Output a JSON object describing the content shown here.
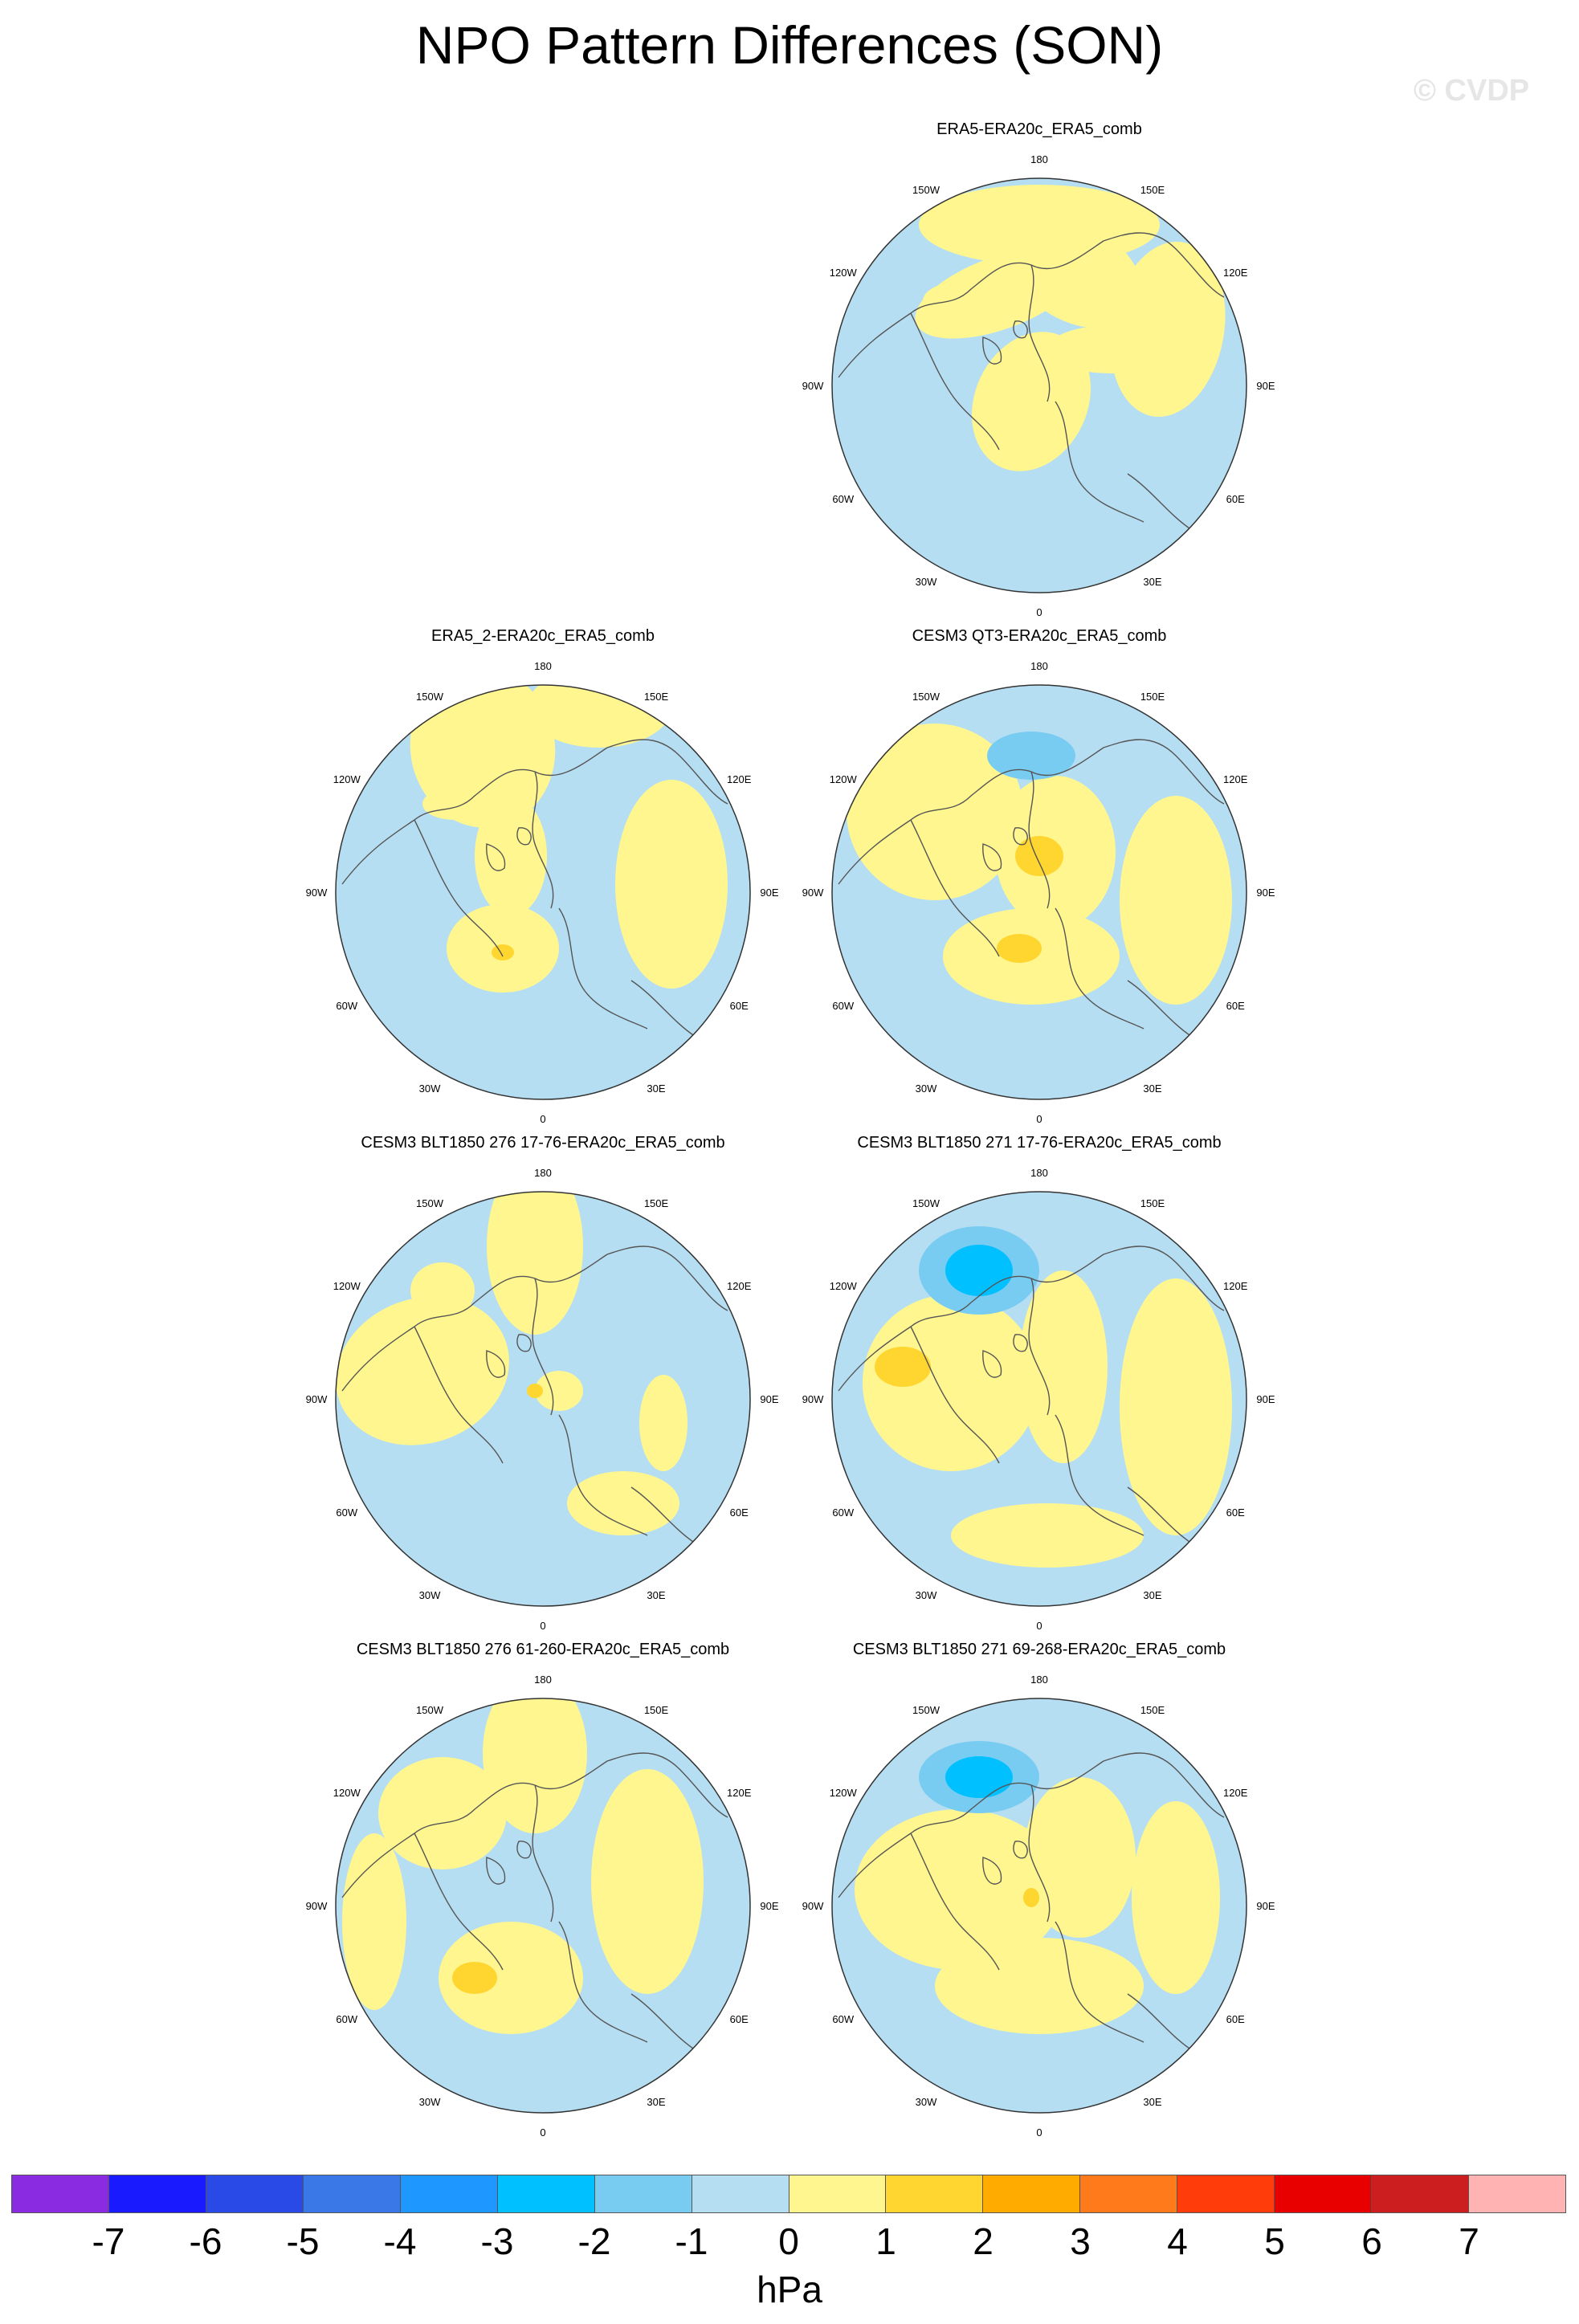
{
  "title": "NPO Pattern Differences (SON)",
  "watermark": "© CVDP",
  "lon_labels": [
    "180",
    "150E",
    "120E",
    "90E",
    "60E",
    "30E",
    "0",
    "30W",
    "60W",
    "90W",
    "120W",
    "150W"
  ],
  "panels": [
    {
      "title": "ERA5-ERA20c_ERA5_comb"
    },
    {
      "title": "ERA5_2-ERA20c_ERA5_comb"
    },
    {
      "title": "CESM3 QT3-ERA20c_ERA5_comb"
    },
    {
      "title": "CESM3 BLT1850 276 17-76-ERA20c_ERA5_comb"
    },
    {
      "title": "CESM3 BLT1850 271 17-76-ERA20c_ERA5_comb"
    },
    {
      "title": "CESM3 BLT1850 276 61-260-ERA20c_ERA5_comb"
    },
    {
      "title": "CESM3 BLT1850 271 69-268-ERA20c_ERA5_comb"
    }
  ],
  "colorbar": {
    "colors": [
      "#8a2be2",
      "#1a1aff",
      "#2a4ae8",
      "#3a78e8",
      "#1e98ff",
      "#00c0ff",
      "#78ccf2",
      "#b6def2",
      "#fff68f",
      "#ffd630",
      "#ffab00",
      "#ff7a1a",
      "#ff3c0a",
      "#e80000",
      "#cc1e1e",
      "#ffb3b3"
    ],
    "ticks": [
      "-7",
      "-6",
      "-5",
      "-4",
      "-3",
      "-2",
      "-1",
      "0",
      "1",
      "2",
      "3",
      "4",
      "5",
      "6",
      "7"
    ],
    "units": "hPa"
  }
}
